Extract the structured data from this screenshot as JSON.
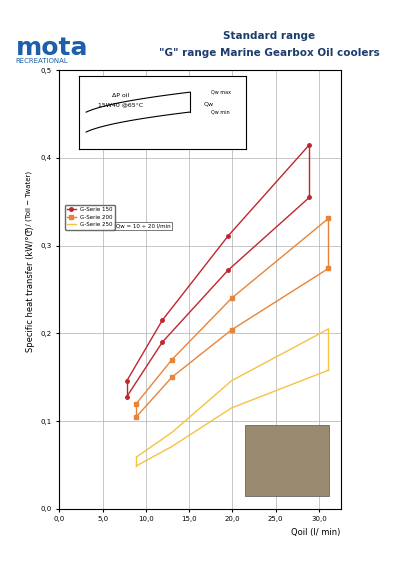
{
  "chart_data": {
    "type": "line",
    "logo": "mota",
    "logo_subtitle": "RECREATIONAL",
    "title": "Standard range",
    "subtitle": "\"G\" range Marine Gearbox Oil coolers",
    "x_label": "Qoil (l/ min)",
    "y_label": "Specific heat transfer (kW/°C)",
    "y_formula": "P / (Toil − Twater)",
    "note": "Qw = 10 ÷ 20 l/min",
    "inset": {
      "labels": [
        "ΔP oil",
        "15W40 @65°C",
        "Qw max",
        "Qw min",
        "Qw"
      ]
    },
    "xlim": [
      0,
      32.5
    ],
    "xticks": [
      {
        "value": 0,
        "label": "0,0"
      },
      {
        "value": 5,
        "label": "5,0"
      },
      {
        "value": 10,
        "label": "10,0"
      },
      {
        "value": 15,
        "label": "15,0"
      },
      {
        "value": 20,
        "label": "20,0"
      },
      {
        "value": 25,
        "label": "25,0"
      },
      {
        "value": 30,
        "label": "30,0"
      }
    ],
    "ylim": [
      0,
      0.5
    ],
    "yticks": [
      {
        "value": 0,
        "label": "0,0"
      },
      {
        "value": 0.1,
        "label": "0,1"
      },
      {
        "value": 0.2,
        "label": "0,2"
      },
      {
        "value": 0.3,
        "label": "0,3"
      },
      {
        "value": 0.4,
        "label": "0,4"
      },
      {
        "value": 0.5,
        "label": "0,5"
      }
    ],
    "grid": true,
    "legend": "upper left",
    "series": [
      {
        "name": "G-Serie 150",
        "color": "#c0262d",
        "marker": "circle",
        "x": [
          7.8,
          11.9,
          19.5,
          28.9
        ],
        "values": [
          0.146,
          0.215,
          0.311,
          0.415
        ],
        "values_low": [
          0.128,
          0.19,
          0.272,
          0.355
        ]
      },
      {
        "name": "G-Serie 200",
        "color": "#e8843a",
        "marker": "square",
        "x": [
          8.9,
          13.0,
          19.9,
          31.1
        ],
        "values": [
          0.12,
          0.17,
          0.24,
          0.331
        ],
        "values_low": [
          0.105,
          0.15,
          0.204,
          0.274
        ]
      },
      {
        "name": "G-Serie 250",
        "color": "#f5c242",
        "marker": "none",
        "x": [
          8.9,
          13.0,
          19.9,
          31.1
        ],
        "values": [
          0.059,
          0.087,
          0.146,
          0.205
        ],
        "values_low": [
          0.049,
          0.071,
          0.115,
          0.158
        ]
      }
    ]
  }
}
